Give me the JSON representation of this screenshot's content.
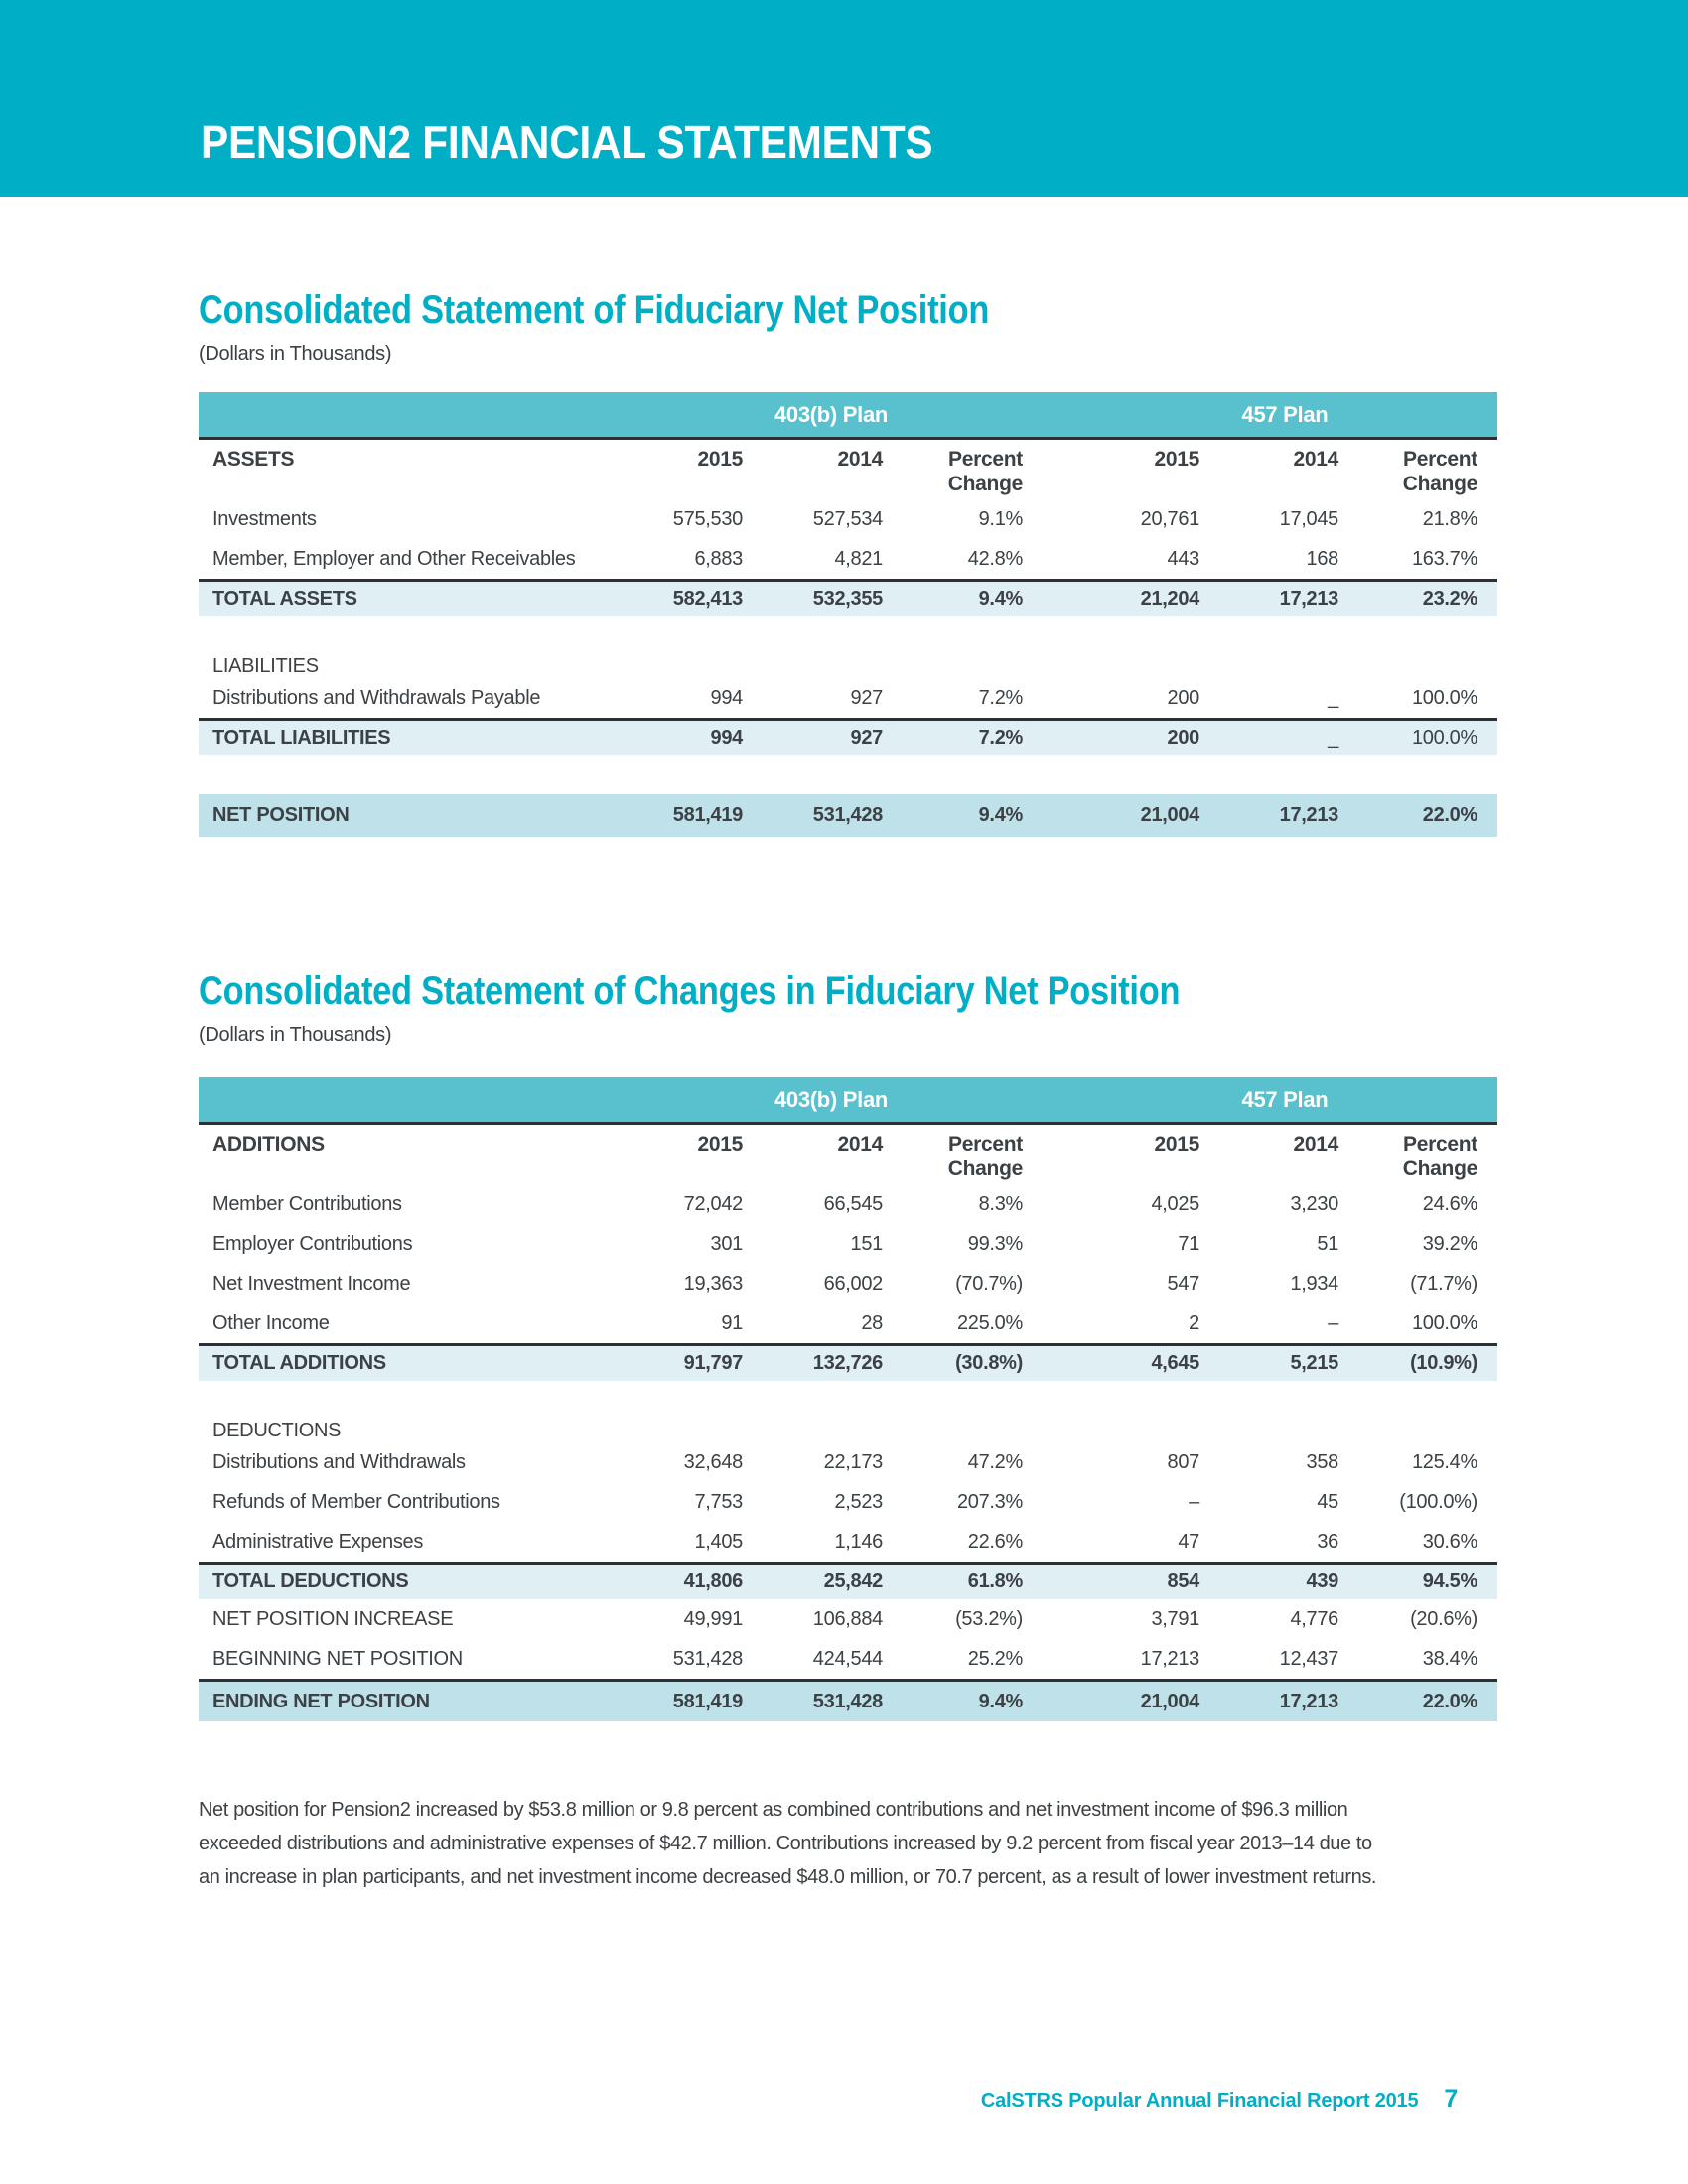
{
  "colors": {
    "banner_teal": "#00aec6",
    "table_header_teal": "#58c1cd",
    "total_row_blue": "#e0eff4",
    "net_row_blue": "#bfe1e9",
    "text": "#3c4145",
    "rule_dark": "#2d3134"
  },
  "banner": {
    "title": "PENSION2 FINANCIAL STATEMENTS"
  },
  "tables": [
    {
      "title": "Consolidated Statement of Fiduciary Net Position",
      "subtitle": "(Dollars in Thousands)",
      "plan_headers": [
        "403(b) Plan",
        "457 Plan"
      ],
      "row_header_label": "ASSETS",
      "columns": [
        "2015",
        "2014",
        "Percent\nChange",
        "2015",
        "2014",
        "Percent\nChange"
      ],
      "rows": [
        {
          "type": "data",
          "label": "Investments",
          "values": [
            "575,530",
            "527,534",
            "9.1%",
            "20,761",
            "17,045",
            "21.8%"
          ]
        },
        {
          "type": "data",
          "label": "Member, Employer and Other Receivables",
          "values": [
            "6,883",
            "4,821",
            "42.8%",
            "443",
            "168",
            "163.7%"
          ]
        },
        {
          "type": "total",
          "topline": true,
          "label": "TOTAL ASSETS",
          "values": [
            "582,413",
            "532,355",
            "9.4%",
            "21,204",
            "17,213",
            "23.2%"
          ]
        },
        {
          "type": "spacer"
        },
        {
          "type": "section",
          "label": "LIABILITIES"
        },
        {
          "type": "data",
          "label": "Distributions and Withdrawals Payable",
          "values": [
            "994",
            "927",
            "7.2%",
            "200",
            "_",
            "100.0%"
          ]
        },
        {
          "type": "total",
          "topline": true,
          "label": "TOTAL LIABILITIES",
          "values": [
            "994",
            "927",
            "7.2%",
            "200",
            "_",
            "100.0%"
          ],
          "regular_cells": [
            4,
            5
          ]
        },
        {
          "type": "spacer"
        },
        {
          "type": "net",
          "label": "NET POSITION",
          "values": [
            "581,419",
            "531,428",
            "9.4%",
            "21,004",
            "17,213",
            "22.0%"
          ]
        }
      ]
    },
    {
      "title": "Consolidated Statement of Changes in Fiduciary Net Position",
      "subtitle": "(Dollars in Thousands)",
      "plan_headers": [
        "403(b) Plan",
        "457 Plan"
      ],
      "row_header_label": "ADDITIONS",
      "columns": [
        "2015",
        "2014",
        "Percent\nChange",
        "2015",
        "2014",
        "Percent\nChange"
      ],
      "rows": [
        {
          "type": "data",
          "label": "Member Contributions",
          "values": [
            "72,042",
            "66,545",
            "8.3%",
            "4,025",
            "3,230",
            "24.6%"
          ]
        },
        {
          "type": "data",
          "label": "Employer Contributions",
          "values": [
            "301",
            "151",
            "99.3%",
            "71",
            "51",
            "39.2%"
          ]
        },
        {
          "type": "data",
          "label": "Net Investment Income",
          "values": [
            "19,363",
            "66,002",
            "(70.7%)",
            "547",
            "1,934",
            "(71.7%)"
          ]
        },
        {
          "type": "data",
          "label": "Other Income",
          "values": [
            "91",
            "28",
            "225.0%",
            "2",
            "–",
            "100.0%"
          ]
        },
        {
          "type": "total",
          "topline": true,
          "label": "TOTAL ADDITIONS",
          "values": [
            "91,797",
            "132,726",
            "(30.8%)",
            "4,645",
            "5,215",
            "(10.9%)"
          ]
        },
        {
          "type": "spacer"
        },
        {
          "type": "section",
          "label": "DEDUCTIONS"
        },
        {
          "type": "data",
          "label": "Distributions and Withdrawals",
          "values": [
            "32,648",
            "22,173",
            "47.2%",
            "807",
            "358",
            "125.4%"
          ]
        },
        {
          "type": "data",
          "label": "Refunds of Member Contributions",
          "values": [
            "7,753",
            "2,523",
            "207.3%",
            "–",
            "45",
            "(100.0%)"
          ]
        },
        {
          "type": "data",
          "label": "Administrative Expenses",
          "values": [
            "1,405",
            "1,146",
            "22.6%",
            "47",
            "36",
            "30.6%"
          ]
        },
        {
          "type": "total",
          "topline": true,
          "label": "TOTAL DEDUCTIONS",
          "values": [
            "41,806",
            "25,842",
            "61.8%",
            "854",
            "439",
            "94.5%"
          ]
        },
        {
          "type": "data",
          "label": "NET POSITION INCREASE",
          "values": [
            "49,991",
            "106,884",
            "(53.2%)",
            "3,791",
            "4,776",
            "(20.6%)"
          ]
        },
        {
          "type": "data",
          "label": "BEGINNING NET POSITION",
          "values": [
            "531,428",
            "424,544",
            "25.2%",
            "17,213",
            "12,437",
            "38.4%"
          ]
        },
        {
          "type": "net",
          "topline": true,
          "label": "ENDING NET POSITION",
          "values": [
            "581,419",
            "531,428",
            "9.4%",
            "21,004",
            "17,213",
            "22.0%"
          ]
        }
      ]
    }
  ],
  "note": "Net position for Pension2 increased by $53.8 million or 9.8 percent as combined contributions and net investment income of $96.3 million exceeded distributions and administrative expenses of $42.7 million. Contributions increased by 9.2 percent from fiscal year 2013–14 due to an increase in plan participants, and net investment income decreased $48.0 million, or 70.7 percent, as a result of lower investment returns.",
  "footer": {
    "text": "CalSTRS Popular Annual Financial Report 2015",
    "page": "7"
  }
}
